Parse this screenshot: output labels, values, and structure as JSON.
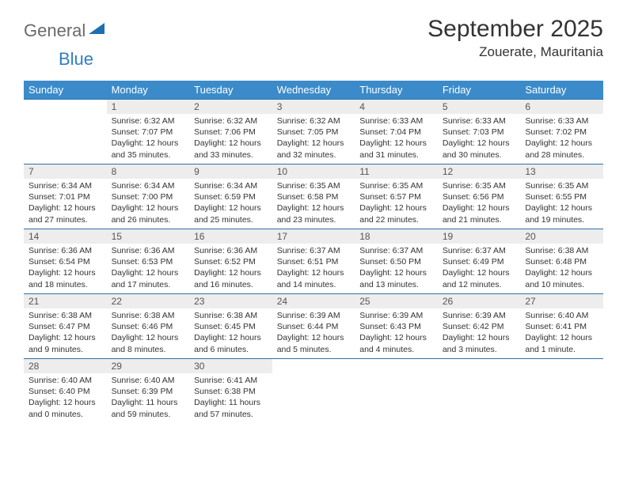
{
  "logo": {
    "part1": "General",
    "part2": "Blue"
  },
  "title": "September 2025",
  "location": "Zouerate, Mauritania",
  "weekdays": [
    "Sunday",
    "Monday",
    "Tuesday",
    "Wednesday",
    "Thursday",
    "Friday",
    "Saturday"
  ],
  "colors": {
    "header_bg": "#3b8bca",
    "header_text": "#ffffff",
    "daynum_bg": "#ededed",
    "border": "#2f6fa8"
  },
  "weeks": [
    [
      {
        "n": "",
        "sunrise": "",
        "sunset": "",
        "daylight": ""
      },
      {
        "n": "1",
        "sunrise": "Sunrise: 6:32 AM",
        "sunset": "Sunset: 7:07 PM",
        "daylight": "Daylight: 12 hours and 35 minutes."
      },
      {
        "n": "2",
        "sunrise": "Sunrise: 6:32 AM",
        "sunset": "Sunset: 7:06 PM",
        "daylight": "Daylight: 12 hours and 33 minutes."
      },
      {
        "n": "3",
        "sunrise": "Sunrise: 6:32 AM",
        "sunset": "Sunset: 7:05 PM",
        "daylight": "Daylight: 12 hours and 32 minutes."
      },
      {
        "n": "4",
        "sunrise": "Sunrise: 6:33 AM",
        "sunset": "Sunset: 7:04 PM",
        "daylight": "Daylight: 12 hours and 31 minutes."
      },
      {
        "n": "5",
        "sunrise": "Sunrise: 6:33 AM",
        "sunset": "Sunset: 7:03 PM",
        "daylight": "Daylight: 12 hours and 30 minutes."
      },
      {
        "n": "6",
        "sunrise": "Sunrise: 6:33 AM",
        "sunset": "Sunset: 7:02 PM",
        "daylight": "Daylight: 12 hours and 28 minutes."
      }
    ],
    [
      {
        "n": "7",
        "sunrise": "Sunrise: 6:34 AM",
        "sunset": "Sunset: 7:01 PM",
        "daylight": "Daylight: 12 hours and 27 minutes."
      },
      {
        "n": "8",
        "sunrise": "Sunrise: 6:34 AM",
        "sunset": "Sunset: 7:00 PM",
        "daylight": "Daylight: 12 hours and 26 minutes."
      },
      {
        "n": "9",
        "sunrise": "Sunrise: 6:34 AM",
        "sunset": "Sunset: 6:59 PM",
        "daylight": "Daylight: 12 hours and 25 minutes."
      },
      {
        "n": "10",
        "sunrise": "Sunrise: 6:35 AM",
        "sunset": "Sunset: 6:58 PM",
        "daylight": "Daylight: 12 hours and 23 minutes."
      },
      {
        "n": "11",
        "sunrise": "Sunrise: 6:35 AM",
        "sunset": "Sunset: 6:57 PM",
        "daylight": "Daylight: 12 hours and 22 minutes."
      },
      {
        "n": "12",
        "sunrise": "Sunrise: 6:35 AM",
        "sunset": "Sunset: 6:56 PM",
        "daylight": "Daylight: 12 hours and 21 minutes."
      },
      {
        "n": "13",
        "sunrise": "Sunrise: 6:35 AM",
        "sunset": "Sunset: 6:55 PM",
        "daylight": "Daylight: 12 hours and 19 minutes."
      }
    ],
    [
      {
        "n": "14",
        "sunrise": "Sunrise: 6:36 AM",
        "sunset": "Sunset: 6:54 PM",
        "daylight": "Daylight: 12 hours and 18 minutes."
      },
      {
        "n": "15",
        "sunrise": "Sunrise: 6:36 AM",
        "sunset": "Sunset: 6:53 PM",
        "daylight": "Daylight: 12 hours and 17 minutes."
      },
      {
        "n": "16",
        "sunrise": "Sunrise: 6:36 AM",
        "sunset": "Sunset: 6:52 PM",
        "daylight": "Daylight: 12 hours and 16 minutes."
      },
      {
        "n": "17",
        "sunrise": "Sunrise: 6:37 AM",
        "sunset": "Sunset: 6:51 PM",
        "daylight": "Daylight: 12 hours and 14 minutes."
      },
      {
        "n": "18",
        "sunrise": "Sunrise: 6:37 AM",
        "sunset": "Sunset: 6:50 PM",
        "daylight": "Daylight: 12 hours and 13 minutes."
      },
      {
        "n": "19",
        "sunrise": "Sunrise: 6:37 AM",
        "sunset": "Sunset: 6:49 PM",
        "daylight": "Daylight: 12 hours and 12 minutes."
      },
      {
        "n": "20",
        "sunrise": "Sunrise: 6:38 AM",
        "sunset": "Sunset: 6:48 PM",
        "daylight": "Daylight: 12 hours and 10 minutes."
      }
    ],
    [
      {
        "n": "21",
        "sunrise": "Sunrise: 6:38 AM",
        "sunset": "Sunset: 6:47 PM",
        "daylight": "Daylight: 12 hours and 9 minutes."
      },
      {
        "n": "22",
        "sunrise": "Sunrise: 6:38 AM",
        "sunset": "Sunset: 6:46 PM",
        "daylight": "Daylight: 12 hours and 8 minutes."
      },
      {
        "n": "23",
        "sunrise": "Sunrise: 6:38 AM",
        "sunset": "Sunset: 6:45 PM",
        "daylight": "Daylight: 12 hours and 6 minutes."
      },
      {
        "n": "24",
        "sunrise": "Sunrise: 6:39 AM",
        "sunset": "Sunset: 6:44 PM",
        "daylight": "Daylight: 12 hours and 5 minutes."
      },
      {
        "n": "25",
        "sunrise": "Sunrise: 6:39 AM",
        "sunset": "Sunset: 6:43 PM",
        "daylight": "Daylight: 12 hours and 4 minutes."
      },
      {
        "n": "26",
        "sunrise": "Sunrise: 6:39 AM",
        "sunset": "Sunset: 6:42 PM",
        "daylight": "Daylight: 12 hours and 3 minutes."
      },
      {
        "n": "27",
        "sunrise": "Sunrise: 6:40 AM",
        "sunset": "Sunset: 6:41 PM",
        "daylight": "Daylight: 12 hours and 1 minute."
      }
    ],
    [
      {
        "n": "28",
        "sunrise": "Sunrise: 6:40 AM",
        "sunset": "Sunset: 6:40 PM",
        "daylight": "Daylight: 12 hours and 0 minutes."
      },
      {
        "n": "29",
        "sunrise": "Sunrise: 6:40 AM",
        "sunset": "Sunset: 6:39 PM",
        "daylight": "Daylight: 11 hours and 59 minutes."
      },
      {
        "n": "30",
        "sunrise": "Sunrise: 6:41 AM",
        "sunset": "Sunset: 6:38 PM",
        "daylight": "Daylight: 11 hours and 57 minutes."
      },
      {
        "n": "",
        "sunrise": "",
        "sunset": "",
        "daylight": ""
      },
      {
        "n": "",
        "sunrise": "",
        "sunset": "",
        "daylight": ""
      },
      {
        "n": "",
        "sunrise": "",
        "sunset": "",
        "daylight": ""
      },
      {
        "n": "",
        "sunrise": "",
        "sunset": "",
        "daylight": ""
      }
    ]
  ]
}
